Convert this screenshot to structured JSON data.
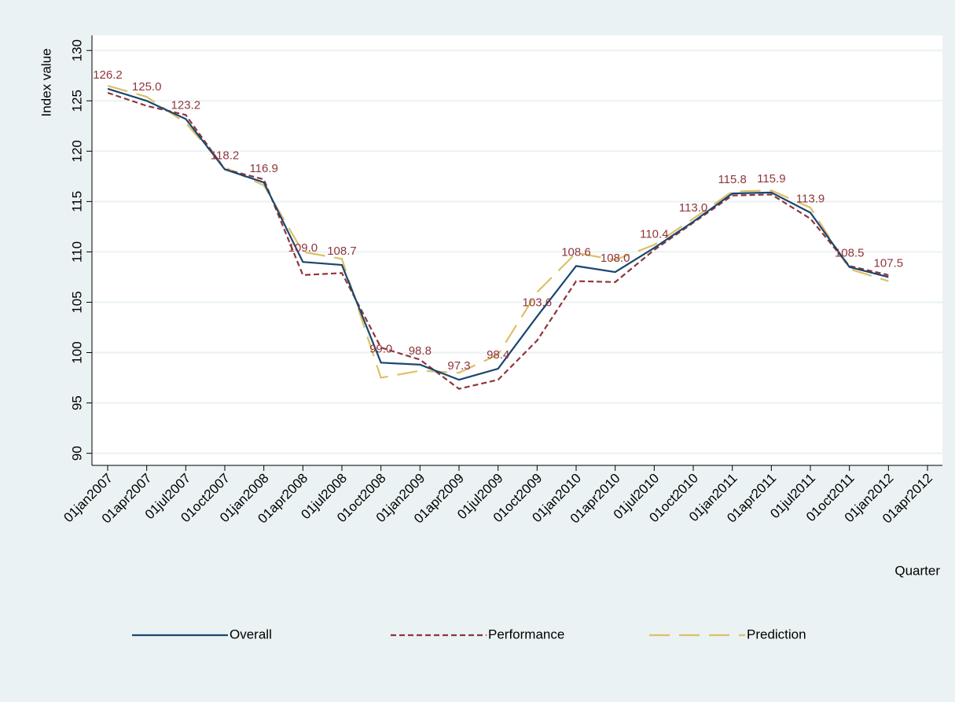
{
  "chart_data": {
    "type": "line",
    "y_label": "Index value",
    "x_label": "Quarter",
    "categories": [
      "01jan2007",
      "01apr2007",
      "01jul2007",
      "01oct2007",
      "01jan2008",
      "01apr2008",
      "01jul2008",
      "01oct2008",
      "01jan2009",
      "01apr2009",
      "01jul2009",
      "01oct2009",
      "01jan2010",
      "01apr2010",
      "01jul2010",
      "01oct2010",
      "01jan2011",
      "01apr2011",
      "01jul2011",
      "01oct2011",
      "01jan2012",
      "01apr2012"
    ],
    "series": [
      {
        "name": "Overall",
        "color": "#1a476f",
        "dash": "solid",
        "values": [
          126.2,
          125.0,
          123.2,
          118.2,
          116.9,
          109.0,
          108.7,
          99.0,
          98.8,
          97.3,
          98.4,
          103.6,
          108.6,
          108.0,
          110.4,
          113.0,
          115.8,
          115.9,
          113.9,
          108.5,
          107.5,
          null
        ],
        "value_labels": [
          "126.2",
          "125.0",
          "123.2",
          "118.2",
          "116.9",
          "109.0",
          "108.7",
          "99.0",
          "98.8",
          "97.3",
          "98.4",
          "103.6",
          "108.6",
          "108.0",
          "110.4",
          "113.0",
          "115.8",
          "115.9",
          "113.9",
          "108.5",
          "107.5",
          null
        ]
      },
      {
        "name": "Performance",
        "color": "#90353b",
        "dash": "short",
        "values": [
          125.8,
          124.5,
          123.6,
          118.2,
          117.2,
          107.7,
          107.9,
          100.5,
          99.3,
          96.4,
          97.3,
          101.2,
          107.1,
          107.0,
          110.2,
          112.9,
          115.6,
          115.7,
          113.3,
          108.6,
          107.7,
          null
        ]
      },
      {
        "name": "Prediction",
        "color": "#dcc06a",
        "dash": "long",
        "values": [
          126.5,
          125.4,
          122.8,
          118.4,
          116.6,
          110.0,
          109.3,
          97.5,
          98.2,
          98.0,
          99.8,
          106.0,
          109.9,
          109.2,
          110.7,
          113.3,
          116.0,
          116.1,
          114.4,
          108.3,
          107.1,
          null
        ]
      }
    ],
    "ylim": [
      88.8,
      131.5
    ],
    "yticks": [
      90,
      95,
      100,
      105,
      110,
      115,
      120,
      125,
      130
    ],
    "grid": true
  }
}
